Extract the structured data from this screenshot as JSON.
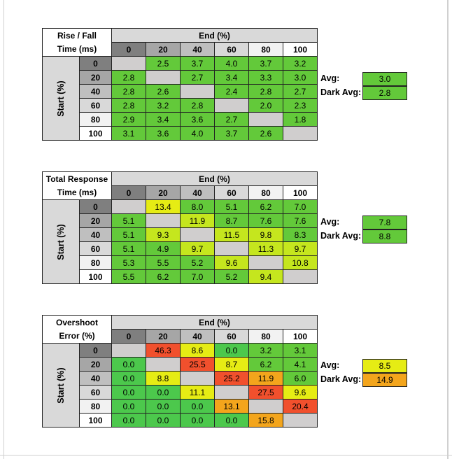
{
  "colors": {
    "empty": "#d0cece",
    "green": "#63c93a",
    "bright_green": "#4cc84c",
    "yellow_green": "#c5e61e",
    "yellow": "#e6ec14",
    "orange": "#f3a51c",
    "red": "#f1502d",
    "header_0": "#7f7f7f",
    "header_20": "#a6a6a6",
    "header_40": "#bfbfbf",
    "header_60": "#d9d9d9",
    "header_80": "#f2f2f2",
    "header_100": "#ffffff"
  },
  "tables": [
    {
      "title_line1": "Rise / Fall",
      "title_line2": "Time (ms)",
      "end_label": "End (%)",
      "start_label": "Start (%)",
      "columns": [
        "0",
        "20",
        "40",
        "60",
        "80",
        "100"
      ],
      "rows": [
        {
          "label": "0",
          "values": [
            "",
            "2.5",
            "3.7",
            "4.0",
            "3.7",
            "3.2"
          ],
          "tones": [
            "empty",
            "green",
            "green",
            "green",
            "green",
            "green"
          ]
        },
        {
          "label": "20",
          "values": [
            "2.8",
            "",
            "2.7",
            "3.4",
            "3.3",
            "3.0"
          ],
          "tones": [
            "green",
            "empty",
            "green",
            "green",
            "green",
            "green"
          ]
        },
        {
          "label": "40",
          "values": [
            "2.8",
            "2.6",
            "",
            "2.4",
            "2.8",
            "2.7"
          ],
          "tones": [
            "green",
            "green",
            "empty",
            "green",
            "green",
            "green"
          ]
        },
        {
          "label": "60",
          "values": [
            "2.8",
            "3.2",
            "2.8",
            "",
            "2.0",
            "2.3"
          ],
          "tones": [
            "green",
            "green",
            "green",
            "empty",
            "green",
            "green"
          ]
        },
        {
          "label": "80",
          "values": [
            "2.9",
            "3.4",
            "3.6",
            "2.7",
            "",
            "1.8"
          ],
          "tones": [
            "green",
            "green",
            "green",
            "green",
            "empty",
            "green"
          ]
        },
        {
          "label": "100",
          "values": [
            "3.1",
            "3.6",
            "4.0",
            "3.7",
            "2.6",
            ""
          ],
          "tones": [
            "green",
            "green",
            "green",
            "green",
            "green",
            "empty"
          ]
        }
      ],
      "avg_label": "Avg:",
      "avg_value": "3.0",
      "avg_tone": "green",
      "dark_avg_label": "Dark Avg:",
      "dark_avg_value": "2.8",
      "dark_avg_tone": "green"
    },
    {
      "title_line1": "Total Response",
      "title_line2": "Time (ms)",
      "end_label": "End (%)",
      "start_label": "Start (%)",
      "columns": [
        "0",
        "20",
        "40",
        "60",
        "80",
        "100"
      ],
      "rows": [
        {
          "label": "0",
          "values": [
            "",
            "13.4",
            "8.0",
            "5.1",
            "6.2",
            "7.0"
          ],
          "tones": [
            "empty",
            "yellow",
            "green",
            "green",
            "green",
            "green"
          ]
        },
        {
          "label": "20",
          "values": [
            "5.1",
            "",
            "11.9",
            "8.7",
            "7.6",
            "7.6"
          ],
          "tones": [
            "green",
            "empty",
            "yellow_green",
            "green",
            "green",
            "green"
          ]
        },
        {
          "label": "40",
          "values": [
            "5.1",
            "9.3",
            "",
            "11.5",
            "9.8",
            "8.3"
          ],
          "tones": [
            "green",
            "yellow_green",
            "empty",
            "yellow_green",
            "yellow_green",
            "green"
          ]
        },
        {
          "label": "60",
          "values": [
            "5.1",
            "4.9",
            "9.7",
            "",
            "11.3",
            "9.7"
          ],
          "tones": [
            "green",
            "green",
            "yellow_green",
            "empty",
            "yellow_green",
            "yellow_green"
          ]
        },
        {
          "label": "80",
          "values": [
            "5.3",
            "5.5",
            "5.2",
            "9.6",
            "",
            "10.8"
          ],
          "tones": [
            "green",
            "green",
            "green",
            "yellow_green",
            "empty",
            "yellow_green"
          ]
        },
        {
          "label": "100",
          "values": [
            "5.5",
            "6.2",
            "7.0",
            "5.2",
            "9.4",
            ""
          ],
          "tones": [
            "green",
            "green",
            "green",
            "green",
            "yellow_green",
            "empty"
          ]
        }
      ],
      "avg_label": "Avg:",
      "avg_value": "7.8",
      "avg_tone": "green",
      "dark_avg_label": "Dark Avg:",
      "dark_avg_value": "8.8",
      "dark_avg_tone": "green"
    },
    {
      "title_line1": "Overshoot",
      "title_line2": "Error (%)",
      "end_label": "End (%)",
      "start_label": "Start (%)",
      "columns": [
        "0",
        "20",
        "40",
        "60",
        "80",
        "100"
      ],
      "rows": [
        {
          "label": "0",
          "values": [
            "",
            "46.3",
            "8.6",
            "0.0",
            "3.2",
            "3.1"
          ],
          "tones": [
            "empty",
            "red",
            "yellow",
            "bright_green",
            "green",
            "green"
          ]
        },
        {
          "label": "20",
          "values": [
            "0.0",
            "",
            "25.5",
            "8.7",
            "6.2",
            "4.1"
          ],
          "tones": [
            "bright_green",
            "empty",
            "red",
            "yellow",
            "green",
            "green"
          ]
        },
        {
          "label": "40",
          "values": [
            "0.0",
            "8.8",
            "",
            "25.2",
            "11.9",
            "6.0"
          ],
          "tones": [
            "bright_green",
            "yellow",
            "empty",
            "red",
            "orange",
            "green"
          ]
        },
        {
          "label": "60",
          "values": [
            "0.0",
            "0.0",
            "11.1",
            "",
            "27.5",
            "9.6"
          ],
          "tones": [
            "bright_green",
            "bright_green",
            "yellow",
            "empty",
            "red",
            "yellow"
          ]
        },
        {
          "label": "80",
          "values": [
            "0.0",
            "0.0",
            "0.0",
            "13.1",
            "",
            "20.4"
          ],
          "tones": [
            "bright_green",
            "bright_green",
            "bright_green",
            "orange",
            "empty",
            "red"
          ]
        },
        {
          "label": "100",
          "values": [
            "0.0",
            "0.0",
            "0.0",
            "0.0",
            "15.8",
            ""
          ],
          "tones": [
            "bright_green",
            "bright_green",
            "bright_green",
            "bright_green",
            "orange",
            "empty"
          ]
        }
      ],
      "avg_label": "Avg:",
      "avg_value": "8.5",
      "avg_tone": "yellow",
      "dark_avg_label": "Dark Avg:",
      "dark_avg_value": "14.9",
      "dark_avg_tone": "orange"
    }
  ]
}
